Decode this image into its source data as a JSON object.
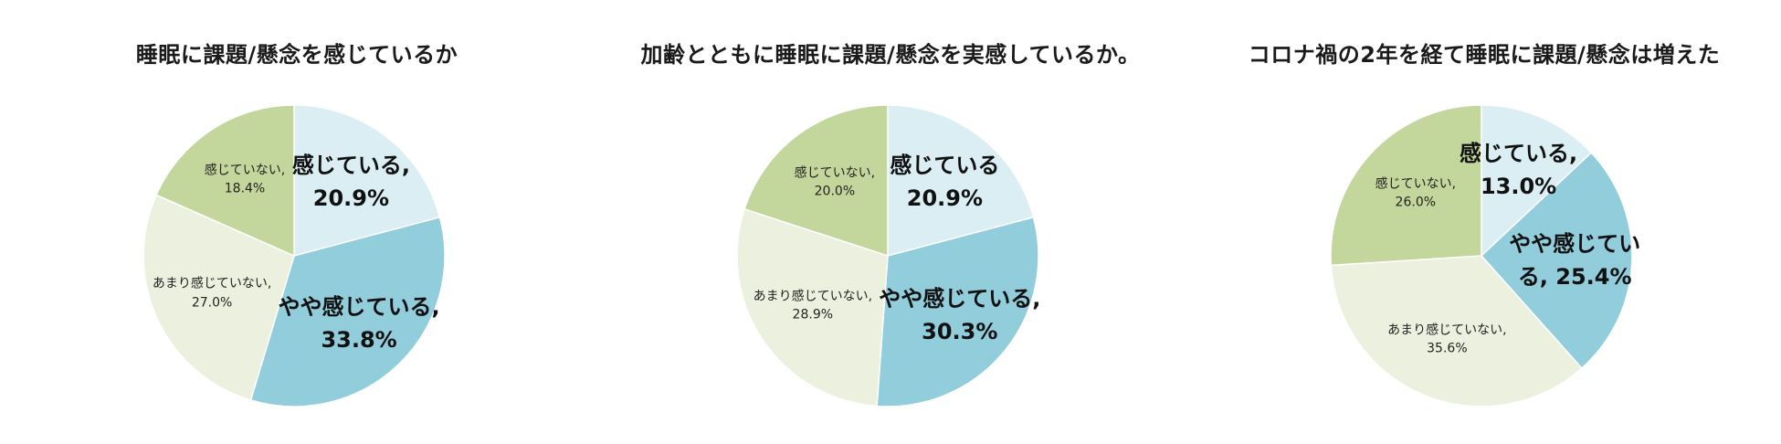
{
  "chart_data": [
    {
      "type": "pie",
      "title": "睡眠に課題/懸念を感じているか",
      "slices": [
        {
          "label_line1": "感じている,",
          "label_line2": "20.9%",
          "value": 20.9,
          "color": "#daeef3",
          "emphasis": true
        },
        {
          "label_line1": "やや感じている,",
          "label_line2": "33.8%",
          "value": 33.8,
          "color": "#92cddc",
          "emphasis": true
        },
        {
          "label_line1": "あまり感じていない,",
          "label_line2": "27.0%",
          "value": 27.0,
          "color": "#ebf1de",
          "emphasis": false
        },
        {
          "label_line1": "感じていない,",
          "label_line2": "18.4%",
          "value": 18.4,
          "color": "#c3d69b",
          "emphasis": false
        }
      ]
    },
    {
      "type": "pie",
      "title": "加齢とともに睡眠に課題/懸念を実感しているか。",
      "slices": [
        {
          "label_line1": "感じている",
          "label_line2": "20.9%",
          "value": 20.9,
          "color": "#daeef3",
          "emphasis": true
        },
        {
          "label_line1": "やや感じている,",
          "label_line2": "30.3%",
          "value": 30.3,
          "color": "#92cddc",
          "emphasis": true
        },
        {
          "label_line1": "あまり感じていない,",
          "label_line2": "28.9%",
          "value": 28.9,
          "color": "#ebf1de",
          "emphasis": false
        },
        {
          "label_line1": "感じていない,",
          "label_line2": "20.0%",
          "value": 20.0,
          "color": "#c3d69b",
          "emphasis": false
        }
      ]
    },
    {
      "type": "pie",
      "title": "コロナ禍の2年を経て睡眠に課題/懸念は増えた",
      "slices": [
        {
          "label_line1": "感じている,",
          "label_line2": "13.0%",
          "value": 13.0,
          "color": "#daeef3",
          "emphasis": true
        },
        {
          "label_line1": "やや感じてい",
          "label_line2": "る, 25.4%",
          "value": 25.4,
          "color": "#92cddc",
          "emphasis": true
        },
        {
          "label_line1": "あまり感じていない,",
          "label_line2": "35.6%",
          "value": 35.6,
          "color": "#ebf1de",
          "emphasis": false
        },
        {
          "label_line1": "感じていない,",
          "label_line2": "26.0%",
          "value": 26.0,
          "color": "#c3d69b",
          "emphasis": false
        }
      ]
    }
  ]
}
